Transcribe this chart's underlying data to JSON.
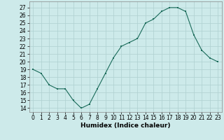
{
  "x": [
    0,
    1,
    2,
    3,
    4,
    5,
    6,
    7,
    8,
    9,
    10,
    11,
    12,
    13,
    14,
    15,
    16,
    17,
    18,
    19,
    20,
    21,
    22,
    23
  ],
  "y": [
    19.0,
    18.5,
    17.0,
    16.5,
    16.5,
    15.0,
    14.0,
    14.5,
    16.5,
    18.5,
    20.5,
    22.0,
    22.5,
    23.0,
    25.0,
    25.5,
    26.5,
    27.0,
    27.0,
    26.5,
    23.5,
    21.5,
    20.5,
    20.0
  ],
  "xlim": [
    -0.5,
    23.5
  ],
  "ylim": [
    13.5,
    27.8
  ],
  "yticks": [
    14,
    15,
    16,
    17,
    18,
    19,
    20,
    21,
    22,
    23,
    24,
    25,
    26,
    27
  ],
  "xticks": [
    0,
    1,
    2,
    3,
    4,
    5,
    6,
    7,
    8,
    9,
    10,
    11,
    12,
    13,
    14,
    15,
    16,
    17,
    18,
    19,
    20,
    21,
    22,
    23
  ],
  "xlabel": "Humidex (Indice chaleur)",
  "line_color": "#1a6b5a",
  "marker_color": "#1a6b5a",
  "bg_color": "#cdeaea",
  "grid_color": "#aed0d0",
  "tick_fontsize": 5.5,
  "label_fontsize": 6.5
}
